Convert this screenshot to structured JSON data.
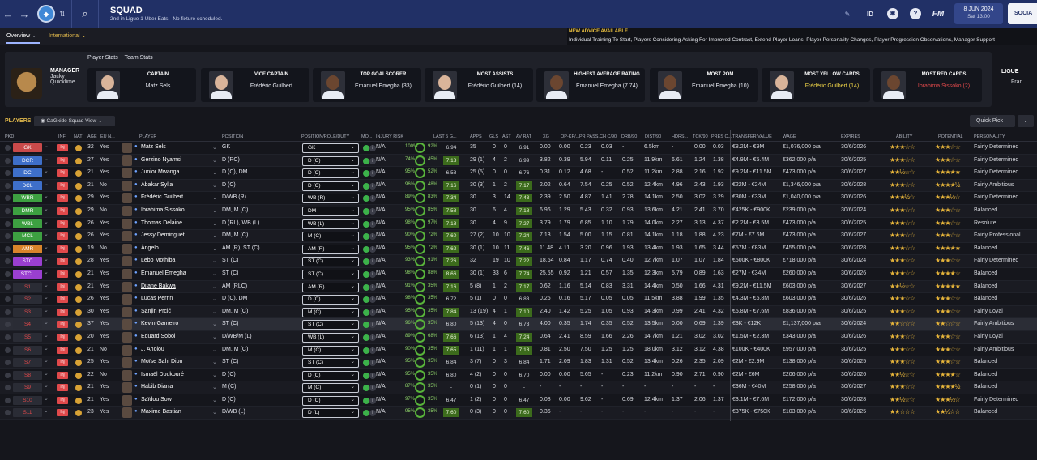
{
  "header": {
    "title": "SQUAD",
    "subtitle": "2nd in Ligue 1 Uber Eats - No fixture scheduled.",
    "date": "8 JUN 2024",
    "time": "Sat 13:00",
    "social": "SOCIA",
    "id": "ID",
    "fm": "FM"
  },
  "tabs": {
    "overview": "Overview",
    "international": "International"
  },
  "advice": {
    "title": "NEW ADVICE AVAILABLE",
    "text": "Individual Training To Start, Players Considering Asking For Improved Contract, Extend Player Loans, Player Personality Changes, Player Progression Observations, Manager Support"
  },
  "manager": {
    "label": "MANAGER",
    "first": "Jacky",
    "last": "Quicklime"
  },
  "stats_tabs": [
    "Player Stats",
    "Team Stats"
  ],
  "cards": [
    {
      "label": "CAPTAIN",
      "value": "Matz Sels",
      "color": "#e4e6ee"
    },
    {
      "label": "VICE CAPTAIN",
      "value": "Frédéric Guilbert",
      "color": "#e4e6ee"
    },
    {
      "label": "TOP GOALSCORER",
      "value": "Emanuel Emegha (33)",
      "color": "#e4e6ee"
    },
    {
      "label": "MOST ASSISTS",
      "value": "Frédéric Guilbert (14)",
      "color": "#e4e6ee"
    },
    {
      "label": "HIGHEST AVERAGE RATING",
      "value": "Emanuel Emegha (7.74)",
      "color": "#e4e6ee"
    },
    {
      "label": "MOST POM",
      "value": "Emanuel Emegha (10)",
      "color": "#e4e6ee"
    },
    {
      "label": "MOST YELLOW CARDS",
      "value": "Frédéric Guilbert (14)",
      "color": "#f2d648"
    },
    {
      "label": "MOST RED CARDS",
      "value": "Ibrahima Sissoko (2)",
      "color": "#e0494b"
    }
  ],
  "league": {
    "label": "LIGUE",
    "value": "Fran"
  },
  "toolbar": {
    "players": "PLAYERS",
    "view": "CaGxide Squad View",
    "quick": "Quick Pick"
  },
  "columns": {
    "pkd": "PKD",
    "inf": "INF",
    "nat": "NAT",
    "age": "AGE",
    "eu": "EU N...",
    "player": "PLAYER",
    "position": "POSITION",
    "role": "POSITION/ROLE/DUTY",
    "mo": "MO...",
    "injury": "INJURY RISK",
    "last": "LAST 5 G...",
    "apps": "APPS",
    "gls": "GLS",
    "ast": "AST",
    "avrat": "AV RAT",
    "xg": "XG",
    "xgp": "OP-KP/...",
    "prpass": "PR PASS...",
    "chc": "CH C/90",
    "drb": "DRB/90",
    "dist": "DIST/90",
    "hdrs": "HDRS...",
    "tck": "TCK/90",
    "pres": "PRES C...",
    "tv": "TRANSFER VALUE",
    "wage": "WAGE",
    "expires": "EXPIRES",
    "ability": "ABILITY",
    "potential": "POTENTIAL",
    "personality": "PERSONALITY"
  },
  "rows": [
    {
      "pos": "GK",
      "pc": "#c94a4a",
      "age": "32",
      "eu": "Yes",
      "name": "Matz Sels",
      "position": "GK",
      "role": "GK",
      "inj": "N/A",
      "pct": "100%",
      "pct2": "92%",
      "last": "6.94",
      "apps": "35",
      "gls": "0",
      "ast": "0",
      "av": "6.91",
      "xg": "0.00",
      "op": "0.00",
      "pr": "0.23",
      "ch": "0.03",
      "drb": "-",
      "dist": "6.5km",
      "hd": "-",
      "tck": "0.00",
      "pres": "0.03",
      "tv": "€8.2M - €9M",
      "wage": "€1,076,000 p/a",
      "exp": "30/6/2026",
      "ab": "★★★☆☆",
      "pot": "★★★☆☆",
      "pers": "Fairly Determined"
    },
    {
      "pos": "DCR",
      "pc": "#3e6fc9",
      "age": "27",
      "eu": "Yes",
      "name": "Gerzino Nyamsi",
      "position": "D (RC)",
      "role": "D (C)",
      "inj": "N/A",
      "pct": "74%",
      "pct2": "45%",
      "last": "7.18",
      "apps": "29 (1)",
      "gls": "4",
      "ast": "2",
      "av": "6.99",
      "xg": "3.82",
      "op": "0.39",
      "pr": "5.94",
      "ch": "0.11",
      "drb": "0.25",
      "dist": "11.9km",
      "hd": "6.61",
      "tck": "1.24",
      "pres": "1.38",
      "tv": "€4.9M - €5.4M",
      "wage": "€362,000 p/a",
      "exp": "30/6/2025",
      "ab": "★★★☆☆",
      "pot": "★★★☆☆",
      "pers": "Fairly Determined"
    },
    {
      "pos": "DC",
      "pc": "#3e6fc9",
      "age": "21",
      "eu": "Yes",
      "name": "Junior Mwanga",
      "position": "D (C), DM",
      "role": "D (C)",
      "inj": "N/A",
      "pct": "95%",
      "pct2": "52%",
      "last": "6.58",
      "apps": "25 (5)",
      "gls": "0",
      "ast": "0",
      "av": "6.76",
      "xg": "0.31",
      "op": "0.12",
      "pr": "4.68",
      "ch": "-",
      "drb": "0.52",
      "dist": "11.2km",
      "hd": "2.88",
      "tck": "2.16",
      "pres": "1.92",
      "tv": "€9.2M - €11.5M",
      "wage": "€473,000 p/a",
      "exp": "30/6/2027",
      "ab": "★★½☆☆",
      "pot": "★★★★★",
      "pers": "Fairly Determined"
    },
    {
      "pos": "DCL",
      "pc": "#3e6fc9",
      "age": "21",
      "eu": "No",
      "name": "Abakar Sylla",
      "position": "D (C)",
      "role": "D (C)",
      "inj": "N/A",
      "pct": "96%",
      "pct2": "48%",
      "last": "7.16",
      "apps": "30 (3)",
      "gls": "1",
      "ast": "2",
      "av": "7.17",
      "xg": "2.02",
      "op": "0.64",
      "pr": "7.54",
      "ch": "0.25",
      "drb": "0.52",
      "dist": "12.4km",
      "hd": "4.96",
      "tck": "2.43",
      "pres": "1.93",
      "tv": "€22M - €24M",
      "wage": "€1,346,000 p/a",
      "exp": "30/6/2028",
      "ab": "★★★☆☆",
      "pot": "★★★★½",
      "pers": "Fairly Ambitious"
    },
    {
      "pos": "WBR",
      "pc": "#3da041",
      "age": "29",
      "eu": "Yes",
      "name": "Frédéric Guilbert",
      "position": "D/WB (R)",
      "role": "WB (R)",
      "inj": "N/A",
      "pct": "89%",
      "pct2": "83%",
      "last": "7.34",
      "apps": "30",
      "gls": "3",
      "ast": "14",
      "av": "7.43",
      "xg": "2.39",
      "op": "2.50",
      "pr": "4.87",
      "ch": "1.41",
      "drb": "2.78",
      "dist": "14.1km",
      "hd": "2.50",
      "tck": "3.02",
      "pres": "3.29",
      "tv": "€30M - €33M",
      "wage": "€1,040,000 p/a",
      "exp": "30/6/2026",
      "ab": "★★★½☆",
      "pot": "★★★½☆",
      "pers": "Fairly Determined"
    },
    {
      "pos": "DMR",
      "pc": "#3da041",
      "age": "29",
      "eu": "No",
      "name": "Ibrahima Sissoko",
      "position": "DM, M (C)",
      "role": "DM",
      "inj": "N/A",
      "pct": "95%",
      "pct2": "85%",
      "last": "7.58",
      "apps": "30",
      "gls": "6",
      "ast": "4",
      "av": "7.18",
      "xg": "6.96",
      "op": "1.29",
      "pr": "5.43",
      "ch": "0.32",
      "drb": "0.93",
      "dist": "13.6km",
      "hd": "4.21",
      "tck": "2.41",
      "pres": "3.70",
      "tv": "€425K - €900K",
      "wage": "€239,000 p/a",
      "exp": "30/6/2024",
      "ab": "★★★☆☆",
      "pot": "★★★☆☆",
      "pers": "Balanced"
    },
    {
      "pos": "WBL",
      "pc": "#3da041",
      "age": "26",
      "eu": "Yes",
      "name": "Thomas Delaine",
      "position": "D (RL), WB (L)",
      "role": "WB (L)",
      "inj": "N/A",
      "pct": "98%",
      "pct2": "97%",
      "last": "7.18",
      "apps": "30",
      "gls": "4",
      "ast": "9",
      "av": "7.27",
      "xg": "3.79",
      "op": "1.79",
      "pr": "6.85",
      "ch": "1.10",
      "drb": "1.79",
      "dist": "14.0km",
      "hd": "2.27",
      "tck": "3.13",
      "pres": "4.37",
      "tv": "€2.2M - €3.5M",
      "wage": "€473,000 p/a",
      "exp": "30/6/2025",
      "ab": "★★★☆☆",
      "pot": "★★★☆☆",
      "pers": "Resolute"
    },
    {
      "pos": "MCL",
      "pc": "#3da041",
      "age": "26",
      "eu": "Yes",
      "name": "Jessy Deminguet",
      "position": "DM, M (C)",
      "role": "M (C)",
      "inj": "N/A",
      "pct": "90%",
      "pct2": "72%",
      "last": "7.60",
      "apps": "27 (2)",
      "gls": "10",
      "ast": "10",
      "av": "7.24",
      "xg": "7.13",
      "op": "1.54",
      "pr": "5.00",
      "ch": "1.15",
      "drb": "0.81",
      "dist": "14.1km",
      "hd": "1.18",
      "tck": "1.88",
      "pres": "4.23",
      "tv": "€7M - €7.6M",
      "wage": "€473,000 p/a",
      "exp": "30/6/2027",
      "ab": "★★★☆☆",
      "pot": "★★★☆☆",
      "pers": "Fairly Professional"
    },
    {
      "pos": "AMR",
      "pc": "#d9842b",
      "age": "19",
      "eu": "No",
      "name": "Ângelo",
      "position": "AM (R), ST (C)",
      "role": "AM (R)",
      "inj": "N/A",
      "pct": "95%",
      "pct2": "72%",
      "last": "7.62",
      "apps": "30 (1)",
      "gls": "10",
      "ast": "11",
      "av": "7.46",
      "xg": "11.48",
      "op": "4.11",
      "pr": "3.20",
      "ch": "0.96",
      "drb": "1.93",
      "dist": "13.4km",
      "hd": "1.93",
      "tck": "1.65",
      "pres": "3.44",
      "tv": "€57M - €83M",
      "wage": "€455,000 p/a",
      "exp": "30/6/2028",
      "ab": "★★★☆☆",
      "pot": "★★★★★",
      "pers": "Balanced"
    },
    {
      "pos": "STC",
      "pc": "#9a3fd0",
      "age": "28",
      "eu": "Yes",
      "name": "Lebo Mothiba",
      "position": "ST (C)",
      "role": "ST (C)",
      "inj": "N/A",
      "pct": "93%",
      "pct2": "91%",
      "last": "7.26",
      "apps": "32",
      "gls": "19",
      "ast": "10",
      "av": "7.22",
      "xg": "18.64",
      "op": "0.84",
      "pr": "1.17",
      "ch": "0.74",
      "drb": "0.40",
      "dist": "12.7km",
      "hd": "1.07",
      "tck": "1.07",
      "pres": "1.84",
      "tv": "€500K - €800K",
      "wage": "€718,000 p/a",
      "exp": "30/6/2024",
      "ab": "★★★☆☆",
      "pot": "★★★☆☆",
      "pers": "Fairly Determined"
    },
    {
      "pos": "STCL",
      "pc": "#9a3fd0",
      "age": "21",
      "eu": "Yes",
      "name": "Emanuel Emegha",
      "position": "ST (C)",
      "role": "ST (C)",
      "inj": "N/A",
      "pct": "98%",
      "pct2": "88%",
      "last": "8.66",
      "apps": "30 (1)",
      "gls": "33",
      "ast": "6",
      "av": "7.74",
      "xg": "25.55",
      "op": "0.92",
      "pr": "1.21",
      "ch": "0.57",
      "drb": "1.35",
      "dist": "12.3km",
      "hd": "5.79",
      "tck": "0.89",
      "pres": "1.63",
      "tv": "€27M - €34M",
      "wage": "€260,000 p/a",
      "exp": "30/6/2026",
      "ab": "★★★☆☆",
      "pot": "★★★★☆",
      "pers": "Balanced"
    },
    {
      "pos": "S1",
      "pc": "#2a2c35",
      "age": "21",
      "eu": "Yes",
      "name": "Dilane Bakwa",
      "position": "AM (RLC)",
      "role": "AM (R)",
      "inj": "N/A",
      "pct": "91%",
      "pct2": "35%",
      "last": "7.16",
      "apps": "5 (8)",
      "gls": "1",
      "ast": "2",
      "av": "7.17",
      "xg": "0.62",
      "op": "1.16",
      "pr": "5.14",
      "ch": "0.83",
      "drb": "3.31",
      "dist": "14.4km",
      "hd": "0.50",
      "tck": "1.66",
      "pres": "4.31",
      "tv": "€9.2M - €11.5M",
      "wage": "€603,000 p/a",
      "exp": "30/6/2027",
      "ab": "★★½☆☆",
      "pot": "★★★★★",
      "pers": "Balanced"
    },
    {
      "pos": "S2",
      "pc": "#2a2c35",
      "age": "26",
      "eu": "Yes",
      "name": "Lucas Perrin",
      "position": "D (C), DM",
      "role": "D (C)",
      "inj": "N/A",
      "pct": "98%",
      "pct2": "35%",
      "last": "6.72",
      "apps": "5 (1)",
      "gls": "0",
      "ast": "0",
      "av": "6.83",
      "xg": "0.26",
      "op": "0.16",
      "pr": "5.17",
      "ch": "0.05",
      "drb": "0.05",
      "dist": "11.5km",
      "hd": "3.88",
      "tck": "1.99",
      "pres": "1.35",
      "tv": "€4.3M - €5.8M",
      "wage": "€603,000 p/a",
      "exp": "30/6/2026",
      "ab": "★★★☆☆",
      "pot": "★★★☆☆",
      "pers": "Balanced"
    },
    {
      "pos": "S3",
      "pc": "#2a2c35",
      "age": "30",
      "eu": "Yes",
      "name": "Sanjin Prcić",
      "position": "DM, M (C)",
      "role": "M (C)",
      "inj": "N/A",
      "pct": "95%",
      "pct2": "35%",
      "last": "7.84",
      "apps": "13 (19)",
      "gls": "4",
      "ast": "1",
      "av": "7.10",
      "xg": "2.40",
      "op": "1.42",
      "pr": "5.25",
      "ch": "1.05",
      "drb": "0.93",
      "dist": "14.3km",
      "hd": "0.99",
      "tck": "2.41",
      "pres": "4.32",
      "tv": "€5.8M - €7.6M",
      "wage": "€836,000 p/a",
      "exp": "30/6/2025",
      "ab": "★★★☆☆",
      "pot": "★★★☆☆",
      "pers": "Fairly Loyal"
    },
    {
      "pos": "S4",
      "pc": "#2a2c35",
      "age": "37",
      "eu": "Yes",
      "name": "Kevin Gameiro",
      "position": "ST (C)",
      "role": "ST (C)",
      "inj": "N/A",
      "pct": "96%",
      "pct2": "35%",
      "last": "6.80",
      "apps": "5 (13)",
      "gls": "4",
      "ast": "0",
      "av": "6.73",
      "xg": "4.00",
      "op": "0.35",
      "pr": "1.74",
      "ch": "0.35",
      "drb": "0.52",
      "dist": "13.5km",
      "hd": "0.00",
      "tck": "0.69",
      "pres": "1.39",
      "tv": "€3K - €12K",
      "wage": "€1,137,000 p/a",
      "exp": "30/6/2024",
      "ab": "★★☆☆☆",
      "pot": "★★☆☆☆",
      "pers": "Fairly Ambitious"
    },
    {
      "pos": "S5",
      "pc": "#2a2c35",
      "age": "20",
      "eu": "Yes",
      "name": "Eduard Sobol",
      "position": "D/WB/M (L)",
      "role": "WB (L)",
      "inj": "N/A",
      "pct": "89%",
      "pct2": "68%",
      "last": "7.66",
      "apps": "6 (13)",
      "gls": "1",
      "ast": "4",
      "av": "7.24",
      "xg": "0.64",
      "op": "2.41",
      "pr": "8.59",
      "ch": "1.66",
      "drb": "2.26",
      "dist": "14.7km",
      "hd": "1.21",
      "tck": "3.02",
      "pres": "3.02",
      "tv": "€1.5M - €2.3M",
      "wage": "€343,000 p/a",
      "exp": "30/6/2026",
      "ab": "★★★☆☆",
      "pot": "★★★☆☆",
      "pers": "Fairly Loyal"
    },
    {
      "pos": "S6",
      "pc": "#2a2c35",
      "age": "21",
      "eu": "No",
      "name": "J. Aholou",
      "position": "DM, M (C)",
      "role": "M (C)",
      "inj": "N/A",
      "pct": "90%",
      "pct2": "35%",
      "last": "7.65",
      "apps": "1 (11)",
      "gls": "1",
      "ast": "1",
      "av": "7.13",
      "xg": "0.81",
      "op": "2.50",
      "pr": "7.50",
      "ch": "1.25",
      "drb": "1.25",
      "dist": "18.0km",
      "hd": "3.12",
      "tck": "3.12",
      "pres": "4.38",
      "tv": "€100K - €400K",
      "wage": "€957,000 p/a",
      "exp": "30/6/2025",
      "ab": "★★★☆☆",
      "pot": "★★★☆☆",
      "pers": "Fairly Ambitious"
    },
    {
      "pos": "S7",
      "pc": "#2a2c35",
      "age": "25",
      "eu": "Yes",
      "name": "Moïse Sahi Dion",
      "position": "ST (C)",
      "role": "ST (C)",
      "inj": "N/A",
      "pct": "95%",
      "pct2": "35%",
      "last": "6.84",
      "apps": "3 (7)",
      "gls": "0",
      "ast": "3",
      "av": "6.84",
      "xg": "1.71",
      "op": "2.09",
      "pr": "1.83",
      "ch": "1.31",
      "drb": "0.52",
      "dist": "13.4km",
      "hd": "0.26",
      "tck": "2.35",
      "pres": "2.09",
      "tv": "€2M - €2.9M",
      "wage": "€138,000 p/a",
      "exp": "30/6/2025",
      "ab": "★★★☆☆",
      "pot": "★★★☆☆",
      "pers": "Balanced"
    },
    {
      "pos": "S8",
      "pc": "#2a2c35",
      "age": "22",
      "eu": "No",
      "name": "Ismaël Doukouré",
      "position": "D (C)",
      "role": "D (C)",
      "inj": "N/A",
      "pct": "95%",
      "pct2": "35%",
      "last": "6.80",
      "apps": "4 (2)",
      "gls": "0",
      "ast": "0",
      "av": "6.70",
      "xg": "0.00",
      "op": "0.00",
      "pr": "5.65",
      "ch": "-",
      "drb": "0.23",
      "dist": "11.2km",
      "hd": "0.90",
      "tck": "2.71",
      "pres": "0.90",
      "tv": "€2M - €6M",
      "wage": "€206,000 p/a",
      "exp": "30/6/2026",
      "ab": "★★½☆☆",
      "pot": "★★★★☆",
      "pers": "Balanced"
    },
    {
      "pos": "S9",
      "pc": "#2a2c35",
      "age": "21",
      "eu": "Yes",
      "name": "Habib Diarra",
      "position": "M (C)",
      "role": "M (C)",
      "inj": "N/A",
      "pct": "87%",
      "pct2": "35%",
      "last": "-",
      "apps": "0 (1)",
      "gls": "0",
      "ast": "0",
      "av": "-",
      "xg": "-",
      "op": "-",
      "pr": "-",
      "ch": "-",
      "drb": "-",
      "dist": "-",
      "hd": "-",
      "tck": "-",
      "pres": "-",
      "tv": "€36M - €40M",
      "wage": "€258,000 p/a",
      "exp": "30/6/2027",
      "ab": "★★★☆☆",
      "pot": "★★★★½",
      "pers": "Balanced"
    },
    {
      "pos": "S10",
      "pc": "#2a2c35",
      "age": "21",
      "eu": "Yes",
      "name": "Saïdou Sow",
      "position": "D (C)",
      "role": "D (C)",
      "inj": "N/A",
      "pct": "97%",
      "pct2": "35%",
      "last": "6.47",
      "apps": "1 (2)",
      "gls": "0",
      "ast": "0",
      "av": "6.47",
      "xg": "0.08",
      "op": "0.00",
      "pr": "9.62",
      "ch": "-",
      "drb": "0.69",
      "dist": "12.4km",
      "hd": "1.37",
      "tck": "2.06",
      "pres": "1.37",
      "tv": "€3.1M - €7.6M",
      "wage": "€172,000 p/a",
      "exp": "30/6/2028",
      "ab": "★★½☆☆",
      "pot": "★★★½☆",
      "pers": "Fairly Determined"
    },
    {
      "pos": "S11",
      "pc": "#2a2c35",
      "age": "23",
      "eu": "Yes",
      "name": "Maxime Bastian",
      "position": "D/WB (L)",
      "role": "D (L)",
      "inj": "N/A",
      "pct": "95%",
      "pct2": "35%",
      "last": "7.60",
      "apps": "0 (3)",
      "gls": "0",
      "ast": "0",
      "av": "7.60",
      "xg": "0.36",
      "op": "-",
      "pr": "-",
      "ch": "-",
      "drb": "-",
      "dist": "-",
      "hd": "-",
      "tck": "-",
      "pres": "-",
      "tv": "€375K - €750K",
      "wage": "€103,000 p/a",
      "exp": "30/6/2025",
      "ab": "★★☆☆☆",
      "pot": "★★½☆☆",
      "pers": "Balanced"
    }
  ]
}
